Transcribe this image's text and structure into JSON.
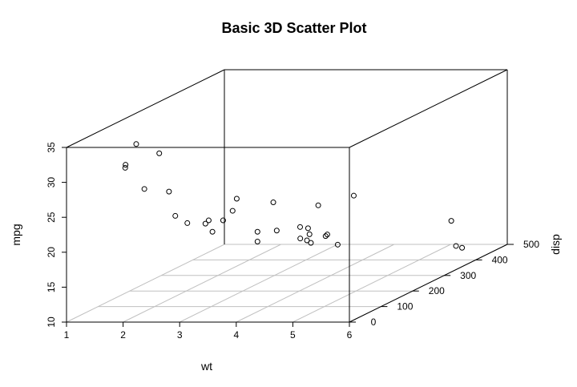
{
  "chart_data": {
    "type": "scatter3d",
    "title": "Basic 3D Scatter Plot",
    "xlabel": "wt",
    "ylabel": "disp",
    "zlabel": "mpg",
    "x": [
      2.62,
      2.875,
      2.32,
      3.215,
      3.44,
      3.46,
      3.57,
      3.19,
      3.15,
      3.44,
      3.44,
      4.07,
      3.73,
      3.78,
      5.25,
      5.424,
      5.345,
      2.2,
      1.615,
      1.835,
      2.465,
      3.52,
      3.435,
      3.84,
      3.845,
      1.935,
      2.14,
      1.513,
      3.17,
      2.77,
      3.57,
      2.78
    ],
    "y": [
      160,
      160,
      108,
      258,
      360,
      225,
      360,
      146.7,
      140.8,
      167.6,
      167.6,
      275.8,
      275.8,
      275.8,
      472,
      460,
      440,
      78.7,
      75.7,
      71.1,
      120.1,
      318,
      304,
      350,
      400,
      79,
      120.3,
      95.1,
      351,
      145,
      301,
      121
    ],
    "z": [
      21,
      21,
      22.8,
      21.4,
      18.7,
      18.1,
      14.3,
      24.4,
      22.8,
      19.2,
      17.8,
      16.4,
      17.3,
      15.2,
      10.4,
      10.4,
      14.7,
      32.4,
      30.4,
      33.9,
      21.5,
      15.5,
      15.2,
      13.3,
      19.2,
      27.3,
      26,
      30.4,
      15.8,
      19.7,
      15,
      21.4
    ],
    "xlim": [
      1,
      6
    ],
    "xticks": [
      1,
      2,
      3,
      4,
      5,
      6
    ],
    "ylim": [
      0,
      500
    ],
    "yticks": [
      0,
      100,
      200,
      300,
      400,
      500
    ],
    "zlim": [
      10,
      35
    ],
    "zticks": [
      10,
      15,
      20,
      25,
      30,
      35
    ],
    "grid": true,
    "color": "#000000"
  }
}
